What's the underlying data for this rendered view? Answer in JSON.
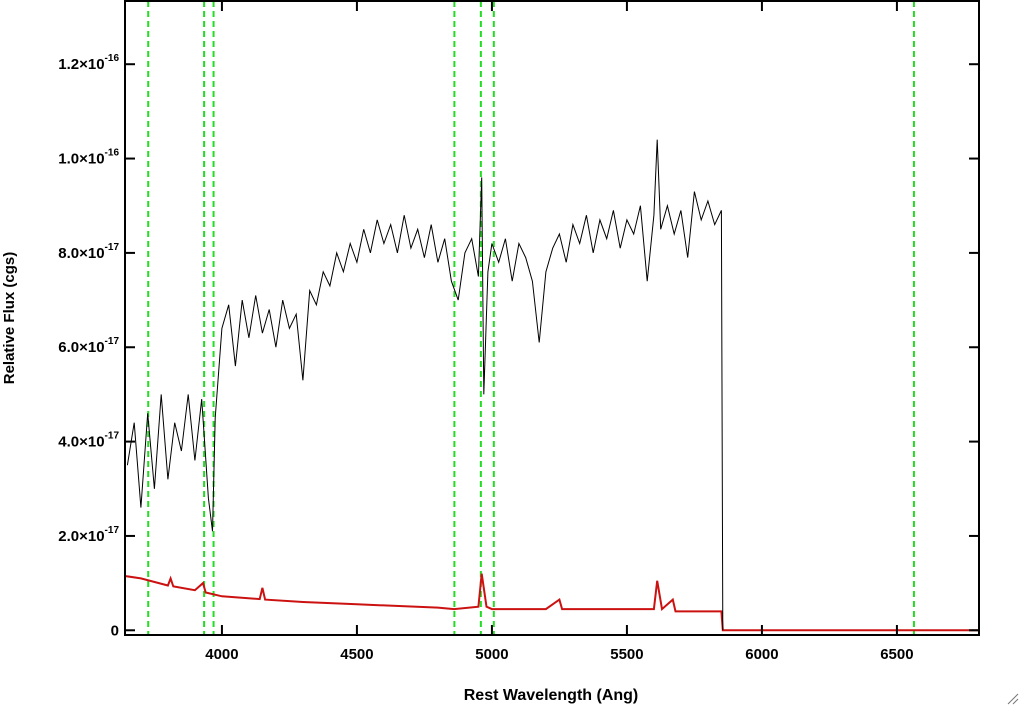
{
  "chart_data": {
    "type": "line",
    "xlabel": "Rest Wavelength (Ang)",
    "ylabel": "Relative Flux (cgs)",
    "xlim": [
      3641,
      6804
    ],
    "ylim": [
      -1e-18,
      1.334e-16
    ],
    "xticks": [
      4000,
      4500,
      5000,
      5500,
      6000,
      6500
    ],
    "yticks": [
      0,
      {
        "value": 2e-17,
        "label": "2.0×10",
        "exponent": "-17"
      },
      {
        "value": 4e-17,
        "label": "4.0×10",
        "exponent": "-17"
      },
      {
        "value": 6e-17,
        "label": "6.0×10",
        "exponent": "-17"
      },
      {
        "value": 8e-17,
        "label": "8.0×10",
        "exponent": "-17"
      },
      {
        "value": 1e-16,
        "label": "1.0×10",
        "exponent": "-16"
      },
      {
        "value": 1.2e-16,
        "label": "1.2×10",
        "exponent": "-16"
      }
    ],
    "reference_lines": {
      "color": "#22dd22",
      "x": [
        3727,
        3934,
        3969,
        4861,
        4959,
        5007,
        6563
      ]
    },
    "series": [
      {
        "color": "#000000",
        "x": [
          3650,
          3675,
          3700,
          3725,
          3750,
          3775,
          3800,
          3825,
          3850,
          3875,
          3900,
          3925,
          3950,
          3965,
          3975,
          4000,
          4025,
          4050,
          4075,
          4100,
          4125,
          4150,
          4175,
          4200,
          4225,
          4250,
          4275,
          4300,
          4325,
          4350,
          4375,
          4400,
          4425,
          4450,
          4475,
          4500,
          4525,
          4550,
          4575,
          4600,
          4625,
          4650,
          4675,
          4700,
          4725,
          4750,
          4775,
          4800,
          4825,
          4850,
          4875,
          4900,
          4925,
          4950,
          4962,
          4970,
          4985,
          5000,
          5025,
          5050,
          5075,
          5100,
          5125,
          5150,
          5175,
          5200,
          5225,
          5250,
          5275,
          5300,
          5325,
          5350,
          5375,
          5400,
          5425,
          5450,
          5475,
          5500,
          5525,
          5550,
          5575,
          5600,
          5612,
          5625,
          5650,
          5675,
          5700,
          5725,
          5750,
          5775,
          5800,
          5825,
          5850,
          5855
        ],
        "values": [
          3.5e-17,
          4.4e-17,
          2.6e-17,
          4.6e-17,
          3e-17,
          5e-17,
          3.2e-17,
          4.4e-17,
          3.8e-17,
          5e-17,
          3.6e-17,
          4.9e-17,
          2.8e-17,
          2.1e-17,
          4.5e-17,
          6.4e-17,
          6.9e-17,
          5.6e-17,
          7e-17,
          6.2e-17,
          7.1e-17,
          6.3e-17,
          6.8e-17,
          6e-17,
          7e-17,
          6.4e-17,
          6.7e-17,
          5.3e-17,
          7.2e-17,
          6.9e-17,
          7.6e-17,
          7.3e-17,
          8e-17,
          7.6e-17,
          8.2e-17,
          7.8e-17,
          8.5e-17,
          8e-17,
          8.7e-17,
          8.2e-17,
          8.6e-17,
          8e-17,
          8.8e-17,
          8.1e-17,
          8.5e-17,
          7.9e-17,
          8.6e-17,
          7.8e-17,
          8.3e-17,
          7.4e-17,
          7e-17,
          8e-17,
          8.3e-17,
          7.5e-17,
          9.6e-17,
          5e-17,
          7.6e-17,
          8.2e-17,
          7.8e-17,
          8.3e-17,
          7.4e-17,
          8.2e-17,
          7.9e-17,
          7.4e-17,
          6.1e-17,
          7.6e-17,
          8.1e-17,
          8.4e-17,
          7.8e-17,
          8.6e-17,
          8.2e-17,
          8.8e-17,
          8e-17,
          8.7e-17,
          8.3e-17,
          8.9e-17,
          8.1e-17,
          8.7e-17,
          8.4e-17,
          9e-17,
          7.4e-17,
          8.8e-17,
          1.04e-16,
          8.5e-17,
          9e-17,
          8.4e-17,
          8.9e-17,
          7.9e-17,
          9.3e-17,
          8.7e-17,
          9.1e-17,
          8.6e-17,
          8.9e-17,
          0
        ]
      },
      {
        "color": "#cc1111",
        "x": [
          3641,
          3700,
          3800,
          3810,
          3820,
          3900,
          3930,
          3940,
          4000,
          4140,
          4150,
          4160,
          4300,
          4500,
          4800,
          4860,
          4950,
          4962,
          4980,
          5000,
          5200,
          5250,
          5260,
          5500,
          5600,
          5612,
          5630,
          5670,
          5680,
          5850,
          5855,
          6804
        ],
        "values": [
          1.15e-17,
          1.1e-17,
          9.5e-18,
          1.1e-17,
          9.3e-18,
          8.5e-18,
          1e-17,
          8e-18,
          7.2e-18,
          6.6e-18,
          9e-18,
          6.5e-18,
          6e-18,
          5.5e-18,
          4.8e-18,
          4.5e-18,
          5e-18,
          1.2e-17,
          5e-18,
          4.5e-18,
          4.5e-18,
          6.5e-18,
          4.5e-18,
          4.5e-18,
          4.5e-18,
          1.05e-17,
          4.5e-18,
          6.5e-18,
          4e-18,
          4e-18,
          0,
          0
        ]
      }
    ]
  }
}
